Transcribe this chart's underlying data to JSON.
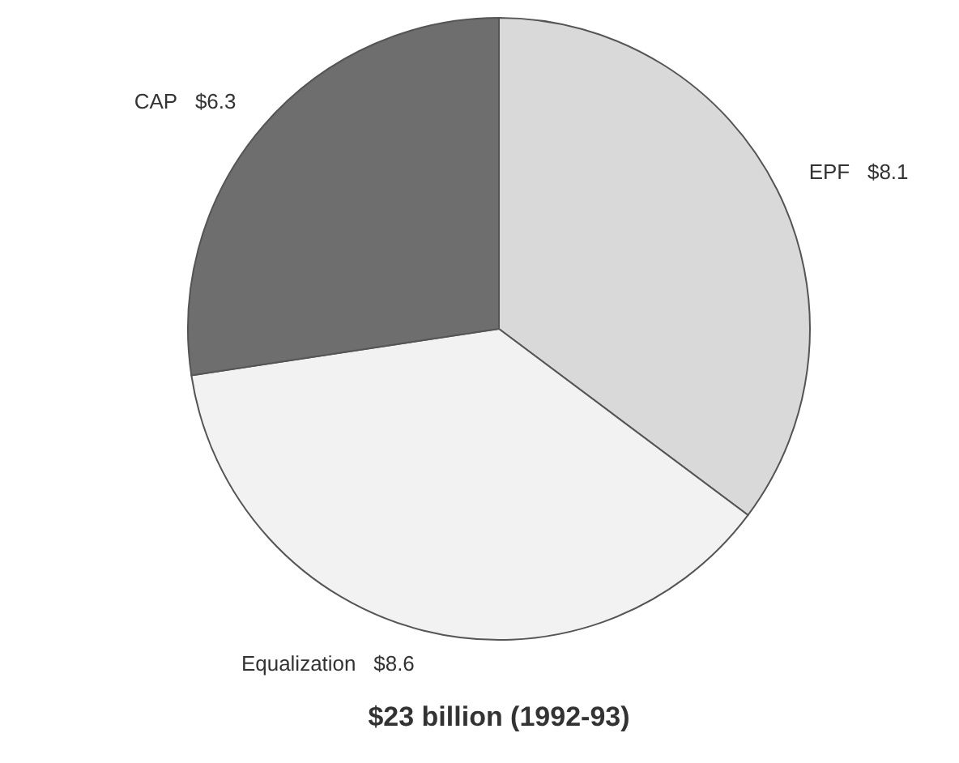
{
  "chart_data": {
    "type": "pie",
    "title": "$23 billion (1992-93)",
    "categories": [
      "EPF",
      "Equalization",
      "CAP"
    ],
    "values": [
      8.1,
      8.6,
      6.3
    ],
    "value_labels": [
      "$8.1",
      "$8.6",
      "$6.3"
    ],
    "colors": [
      "#d9d9d9",
      "#f2f2f2",
      "#6e6e6e"
    ]
  }
}
